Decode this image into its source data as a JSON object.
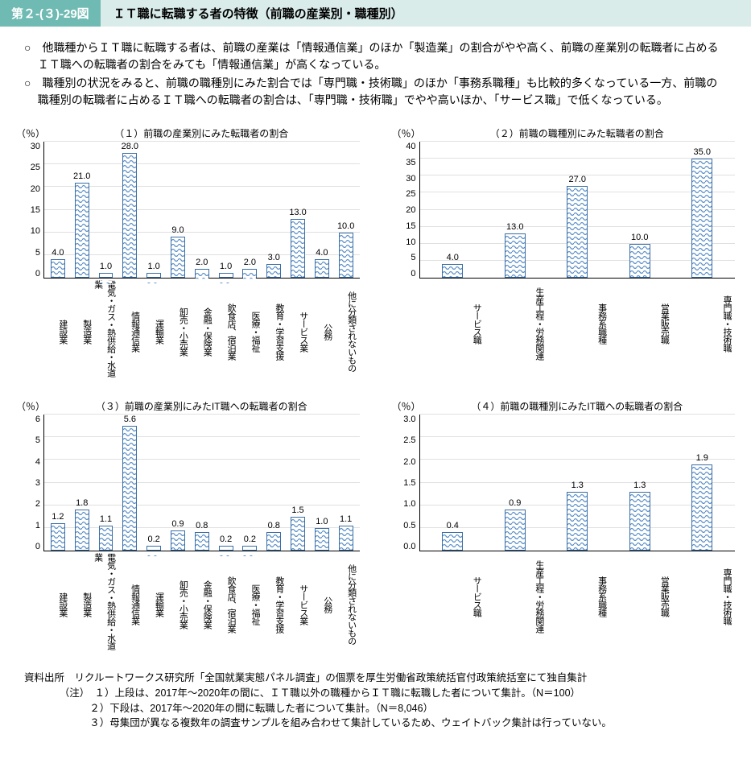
{
  "header": {
    "figure_number": "第２-(３)-29図",
    "title": "ＩＴ職に転職する者の特徴（前職の産業別・職種別）"
  },
  "bullets": [
    "○　他職種からＩＴ職に転職する者は、前職の産業は「情報通信業」のほか「製造業」の割合がやや高く、前職の産業別の転職者に占めるＩＴ職への転職者の割合をみても「情報通信業」が高くなっている。",
    "○　職種別の状況をみると、前職の職種別にみた割合では「専門職・技術職」のほか「事務系職種」も比較的多くなっている一方、前職の職種別の転職者に占めるＩＴ職への転職者の割合は、「専門職・技術職」でやや高いほか、「サービス職」で低くなっている。"
  ],
  "style": {
    "bar_fill": "#bcd7ef",
    "bar_border": "#3a6ea5",
    "grid_color": "#e0e0e0",
    "axis_color": "#000000",
    "header_accent_bg": "#6fbab2",
    "header_title_bg": "#d9ecea",
    "font_family": "Hiragino Kaku Gothic ProN"
  },
  "charts": [
    {
      "id": "chart1",
      "y_unit": "（％）",
      "title": "（１）前職の産業別にみた転職者の割合",
      "ylim": [
        0,
        30
      ],
      "ytick_step": 5,
      "categories": [
        "建設業",
        "製造業",
        "電気・ガス・熱供給・水道業",
        "情報通信業",
        "運輸業",
        "卸売・小売業",
        "金融・保険業",
        "飲食店、宿泊業",
        "医療・福祉",
        "教育・学習支援",
        "サービス業",
        "公務",
        "他に分類されないもの"
      ],
      "values": [
        4.0,
        21.0,
        1.0,
        28.0,
        1.0,
        9.0,
        2.0,
        1.0,
        2.0,
        3.0,
        13.0,
        4.0,
        10.0
      ],
      "label_fontsize": 11
    },
    {
      "id": "chart2",
      "y_unit": "（％）",
      "title": "（２）前職の職種別にみた転職者の割合",
      "ylim": [
        0,
        40
      ],
      "ytick_step": 5,
      "categories": [
        "サービス職",
        "生産工程・労務関連",
        "事務系職種",
        "営業販売職",
        "専門職・技術職"
      ],
      "values": [
        4.0,
        13.0,
        27.0,
        10.0,
        35.0
      ],
      "label_fontsize": 11
    },
    {
      "id": "chart3",
      "y_unit": "（％）",
      "title": "（３）前職の産業別にみたIT職への転職者の割合",
      "ylim": [
        0,
        6.0
      ],
      "ytick_step": 1.0,
      "categories": [
        "建設業",
        "製造業",
        "電気・ガス・熱供給・水道業",
        "情報通信業",
        "運輸業",
        "卸売・小売業",
        "金融・保険業",
        "飲食店、宿泊業",
        "医療・福祉",
        "教育・学習支援",
        "サービス業",
        "公務",
        "他に分類されないもの"
      ],
      "values": [
        1.2,
        1.8,
        1.1,
        5.6,
        0.2,
        0.9,
        0.8,
        0.2,
        0.2,
        0.8,
        1.5,
        1.0,
        1.1
      ],
      "label_fontsize": 11
    },
    {
      "id": "chart4",
      "y_unit": "（％）",
      "title": "（４）前職の職種別にみたIT職への転職者の割合",
      "ylim": [
        0,
        3.0
      ],
      "ytick_step": 0.5,
      "categories": [
        "サービス職",
        "生産工程・労務関連",
        "事務系職種",
        "営業販売職",
        "専門職・技術職"
      ],
      "values": [
        0.4,
        0.9,
        1.3,
        1.3,
        1.9
      ],
      "label_fontsize": 11
    }
  ],
  "source": {
    "label": "資料出所",
    "text": "リクルートワークス研究所「全国就業実態パネル調査」の個票を厚生労働省政策統括官付政策統括室にて独自集計"
  },
  "notes_label": "（注）",
  "notes": [
    "１）上段は、2017年～2020年の間に、ＩＴ職以外の職種からＩＴ職に転職した者について集計。（N＝100）",
    "２）下段は、2017年～2020年の間に転職した者について集計。（N＝8,046）",
    "３）母集団が異なる複数年の調査サンプルを組み合わせて集計しているため、ウェイトバック集計は行っていない。"
  ]
}
